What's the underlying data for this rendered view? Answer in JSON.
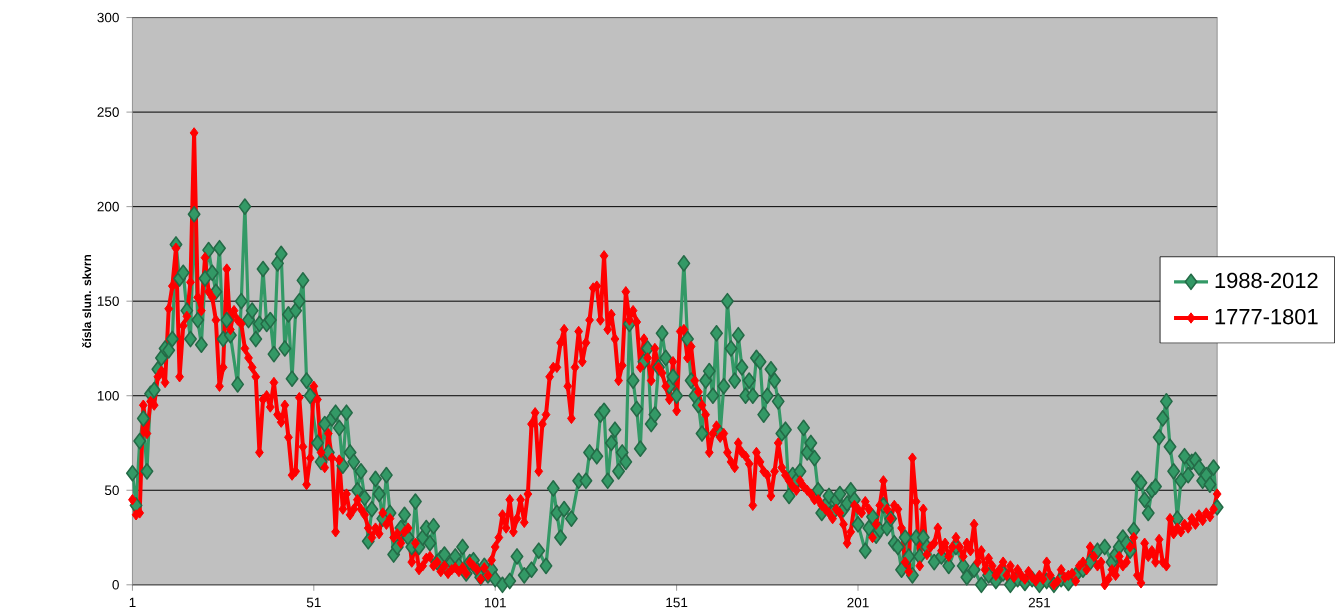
{
  "chart_data": {
    "type": "line",
    "ylabel": "čísla slun. skvrn",
    "x": [
      1,
      2,
      3,
      4,
      5,
      6,
      7,
      8,
      9,
      10,
      11,
      12,
      13,
      14,
      15,
      16,
      17,
      18,
      19,
      20,
      21,
      22,
      23,
      24,
      25,
      26,
      27,
      28,
      29,
      30,
      31,
      32,
      33,
      34,
      35,
      36,
      37,
      38,
      39,
      40,
      41,
      42,
      43,
      44,
      45,
      46,
      47,
      48,
      49,
      50,
      51,
      52,
      53,
      54,
      55,
      56,
      57,
      58,
      59,
      60,
      61,
      62,
      63,
      64,
      65,
      66,
      67,
      68,
      69,
      70,
      71,
      72,
      73,
      74,
      75,
      76,
      77,
      78,
      79,
      80,
      81,
      82,
      83,
      84,
      85,
      86,
      87,
      88,
      89,
      90,
      91,
      92,
      93,
      94,
      95,
      96,
      97,
      98,
      99,
      100,
      101,
      102,
      103,
      104,
      105,
      106,
      107,
      108,
      109,
      110,
      111,
      112,
      113,
      114,
      115,
      116,
      117,
      118,
      119,
      120,
      121,
      122,
      123,
      124,
      125,
      126,
      127,
      128,
      129,
      130,
      131,
      132,
      133,
      134,
      135,
      136,
      137,
      138,
      139,
      140,
      141,
      142,
      143,
      144,
      145,
      146,
      147,
      148,
      149,
      150,
      151,
      152,
      153,
      154,
      155,
      156,
      157,
      158,
      159,
      160,
      161,
      162,
      163,
      164,
      165,
      166,
      167,
      168,
      169,
      170,
      171,
      172,
      173,
      174,
      175,
      176,
      177,
      178,
      179,
      180,
      181,
      182,
      183,
      184,
      185,
      186,
      187,
      188,
      189,
      190,
      191,
      192,
      193,
      194,
      195,
      196,
      197,
      198,
      199,
      200,
      201,
      202,
      203,
      204,
      205,
      206,
      207,
      208,
      209,
      210,
      211,
      212,
      213,
      214,
      215,
      216,
      217,
      218,
      219,
      220,
      221,
      222,
      223,
      224,
      225,
      226,
      227,
      228,
      229,
      230,
      231,
      232,
      233,
      234,
      235,
      236,
      237,
      238,
      239,
      240,
      241,
      242,
      243,
      244,
      245,
      246,
      247,
      248,
      249,
      250,
      251,
      252,
      253,
      254,
      255,
      256,
      257,
      258,
      259,
      260,
      261,
      262,
      263,
      264,
      265,
      266,
      267,
      268,
      269,
      270,
      271,
      272,
      273,
      274,
      275,
      276,
      277,
      278,
      279,
      280,
      281,
      282,
      283,
      284,
      285,
      286,
      287,
      288,
      289,
      290,
      291,
      292,
      293,
      294,
      295,
      296,
      297,
      298,
      299,
      300
    ],
    "series": [
      {
        "name": "1988-2012",
        "color": "#339966",
        "x": [
          1,
          2,
          3,
          4,
          5,
          6,
          7,
          8,
          9,
          10,
          11,
          12,
          13,
          14,
          15,
          16,
          17,
          18,
          19,
          20,
          21,
          22,
          23,
          24,
          25,
          26,
          27,
          28,
          30,
          31,
          32,
          33,
          34,
          35,
          36,
          37,
          38,
          39,
          40,
          41,
          42,
          43,
          44,
          45,
          46,
          47,
          48,
          49,
          50,
          52,
          53,
          54,
          55,
          56,
          57,
          58,
          59,
          60,
          61,
          62,
          63,
          64,
          65,
          66,
          67,
          68,
          69,
          70,
          71,
          72,
          73,
          74,
          75,
          76,
          77,
          78,
          79,
          80,
          81,
          82,
          83,
          84,
          85,
          86,
          87,
          88,
          89,
          90,
          91,
          92,
          93,
          94,
          95,
          96,
          97,
          98,
          99,
          100,
          101,
          103,
          105,
          107,
          109,
          111,
          113,
          115,
          117,
          118,
          119,
          120,
          122,
          124,
          126,
          127,
          129,
          130,
          131,
          132,
          133,
          134,
          135,
          136,
          137,
          138,
          139,
          140,
          141,
          142,
          143,
          144,
          145,
          146,
          147,
          148,
          149,
          150,
          151,
          153,
          154,
          155,
          156,
          157,
          158,
          159,
          160,
          161,
          162,
          163,
          164,
          165,
          166,
          167,
          168,
          169,
          170,
          171,
          172,
          173,
          174,
          175,
          176,
          177,
          178,
          179,
          180,
          181,
          182,
          183,
          184,
          185,
          186,
          187,
          188,
          189,
          190,
          191,
          192,
          193,
          194,
          195,
          196,
          197,
          198,
          199,
          200,
          201,
          203,
          204,
          205,
          206,
          207,
          208,
          209,
          210,
          211,
          212,
          213,
          214,
          215,
          216,
          217,
          218,
          219,
          220,
          222,
          224,
          226,
          228,
          230,
          231,
          233,
          235,
          237,
          239,
          241,
          243,
          245,
          247,
          249,
          251,
          253,
          255,
          257,
          259,
          261,
          263,
          265,
          267,
          269,
          271,
          272,
          273,
          274,
          275,
          276,
          277,
          278,
          279,
          280,
          281,
          282,
          283,
          284,
          285,
          286,
          287,
          288,
          289,
          290,
          291,
          292,
          293,
          294,
          295,
          296,
          297,
          298,
          299,
          300
        ],
        "values": [
          59,
          42,
          76,
          88,
          60,
          101,
          103,
          114,
          120,
          125,
          124,
          130,
          180,
          162,
          165,
          145,
          130,
          196,
          140,
          127,
          162,
          177,
          165,
          155,
          178,
          130,
          140,
          132,
          106,
          150,
          200,
          140,
          145,
          130,
          138,
          167,
          138,
          140,
          122,
          170,
          175,
          125,
          143,
          109,
          145,
          150,
          161,
          108,
          100,
          75,
          65,
          85,
          70,
          88,
          91,
          83,
          63,
          91,
          70,
          65,
          50,
          60,
          46,
          23,
          40,
          56,
          48,
          35,
          58,
          38,
          16,
          20,
          30,
          37,
          25,
          20,
          44,
          20,
          25,
          30,
          22,
          31,
          12,
          14,
          16,
          8,
          12,
          15,
          10,
          20,
          6,
          12,
          13,
          8,
          4,
          10,
          5,
          8,
          3,
          0,
          2,
          15,
          5,
          8,
          18,
          10,
          51,
          38,
          25,
          40,
          35,
          55,
          55,
          70,
          68,
          90,
          92,
          55,
          75,
          82,
          60,
          70,
          65,
          138,
          108,
          93,
          72,
          118,
          125,
          85,
          90,
          115,
          133,
          120,
          105,
          110,
          100,
          170,
          130,
          108,
          100,
          95,
          80,
          108,
          113,
          100,
          133,
          80,
          105,
          150,
          125,
          108,
          132,
          115,
          100,
          108,
          100,
          120,
          118,
          90,
          100,
          114,
          108,
          97,
          80,
          82,
          47,
          58,
          55,
          60,
          83,
          70,
          75,
          67,
          50,
          38,
          42,
          47,
          38,
          45,
          48,
          40,
          43,
          50,
          45,
          32,
          18,
          30,
          36,
          26,
          29,
          42,
          30,
          35,
          22,
          20,
          8,
          25,
          15,
          5,
          25,
          15,
          25,
          20,
          12,
          15,
          10,
          20,
          10,
          4,
          8,
          0,
          5,
          2,
          6,
          0,
          3,
          1,
          3,
          0,
          2,
          0,
          3,
          1,
          5,
          8,
          12,
          18,
          20,
          12,
          16,
          20,
          25,
          22,
          18,
          29,
          56,
          54,
          45,
          38,
          50,
          52,
          78,
          88,
          97,
          73,
          60,
          35,
          55,
          68,
          58,
          65,
          66,
          62,
          55,
          58,
          53,
          62,
          41
        ]
      },
      {
        "name": "1777-1801",
        "color": "#ff0000",
        "values": [
          45,
          37,
          38,
          95,
          80,
          97,
          95,
          110,
          113,
          107,
          146,
          158,
          178,
          110,
          137,
          142,
          160,
          239,
          152,
          145,
          173,
          155,
          152,
          140,
          105,
          115,
          167,
          135,
          145,
          140,
          138,
          125,
          120,
          115,
          110,
          70,
          98,
          100,
          94,
          107,
          90,
          86,
          95,
          78,
          58,
          60,
          99,
          73,
          53,
          67,
          105,
          98,
          70,
          62,
          80,
          67,
          28,
          66,
          40,
          48,
          37,
          40,
          45,
          40,
          37,
          30,
          25,
          30,
          27,
          38,
          32,
          35,
          25,
          27,
          22,
          28,
          30,
          12,
          22,
          8,
          10,
          14,
          15,
          10,
          12,
          7,
          10,
          6,
          8,
          9,
          7,
          9,
          6,
          12,
          10,
          8,
          3,
          9,
          5,
          13,
          20,
          25,
          37,
          30,
          45,
          28,
          35,
          45,
          33,
          48,
          85,
          91,
          60,
          85,
          90,
          110,
          115,
          115,
          128,
          135,
          105,
          88,
          115,
          134,
          118,
          128,
          140,
          157,
          158,
          140,
          174,
          135,
          143,
          130,
          108,
          116,
          155,
          140,
          145,
          139,
          115,
          130,
          120,
          108,
          125,
          115,
          112,
          105,
          98,
          118,
          92,
          134,
          135,
          120,
          126,
          108,
          102,
          95,
          90,
          70,
          80,
          84,
          78,
          80,
          70,
          65,
          62,
          75,
          70,
          68,
          64,
          42,
          70,
          65,
          60,
          58,
          47,
          60,
          75,
          62,
          58,
          55,
          52,
          50,
          55,
          52,
          50,
          48,
          45,
          45,
          42,
          40,
          38,
          35,
          40,
          38,
          32,
          22,
          28,
          42,
          40,
          38,
          44,
          40,
          25,
          32,
          42,
          55,
          40,
          35,
          42,
          40,
          30,
          12,
          7,
          67,
          44,
          10,
          40,
          16,
          20,
          22,
          30,
          18,
          22,
          15,
          20,
          25,
          20,
          15,
          22,
          18,
          32,
          12,
          18,
          8,
          14,
          10,
          5,
          8,
          12,
          5,
          10,
          4,
          8,
          5,
          3,
          7,
          4,
          2,
          5,
          3,
          12,
          5,
          0,
          2,
          8,
          4,
          5,
          6,
          2,
          10,
          12,
          8,
          20,
          15,
          10,
          12,
          0,
          3,
          8,
          5,
          15,
          10,
          12,
          20,
          25,
          5,
          1,
          22,
          15,
          18,
          12,
          24,
          12,
          10,
          35,
          27,
          30,
          28,
          32,
          30,
          35,
          32,
          37,
          34,
          38,
          36,
          40,
          48
        ]
      }
    ],
    "xlim": [
      1,
      300
    ],
    "xticks": [
      1,
      51,
      101,
      151,
      201,
      251
    ],
    "ylim": [
      0,
      300
    ],
    "yticks": [
      0,
      50,
      100,
      150,
      200,
      250,
      300
    ],
    "grid": "y",
    "legend": "right",
    "marker": "diamond",
    "line_style": "solid"
  }
}
